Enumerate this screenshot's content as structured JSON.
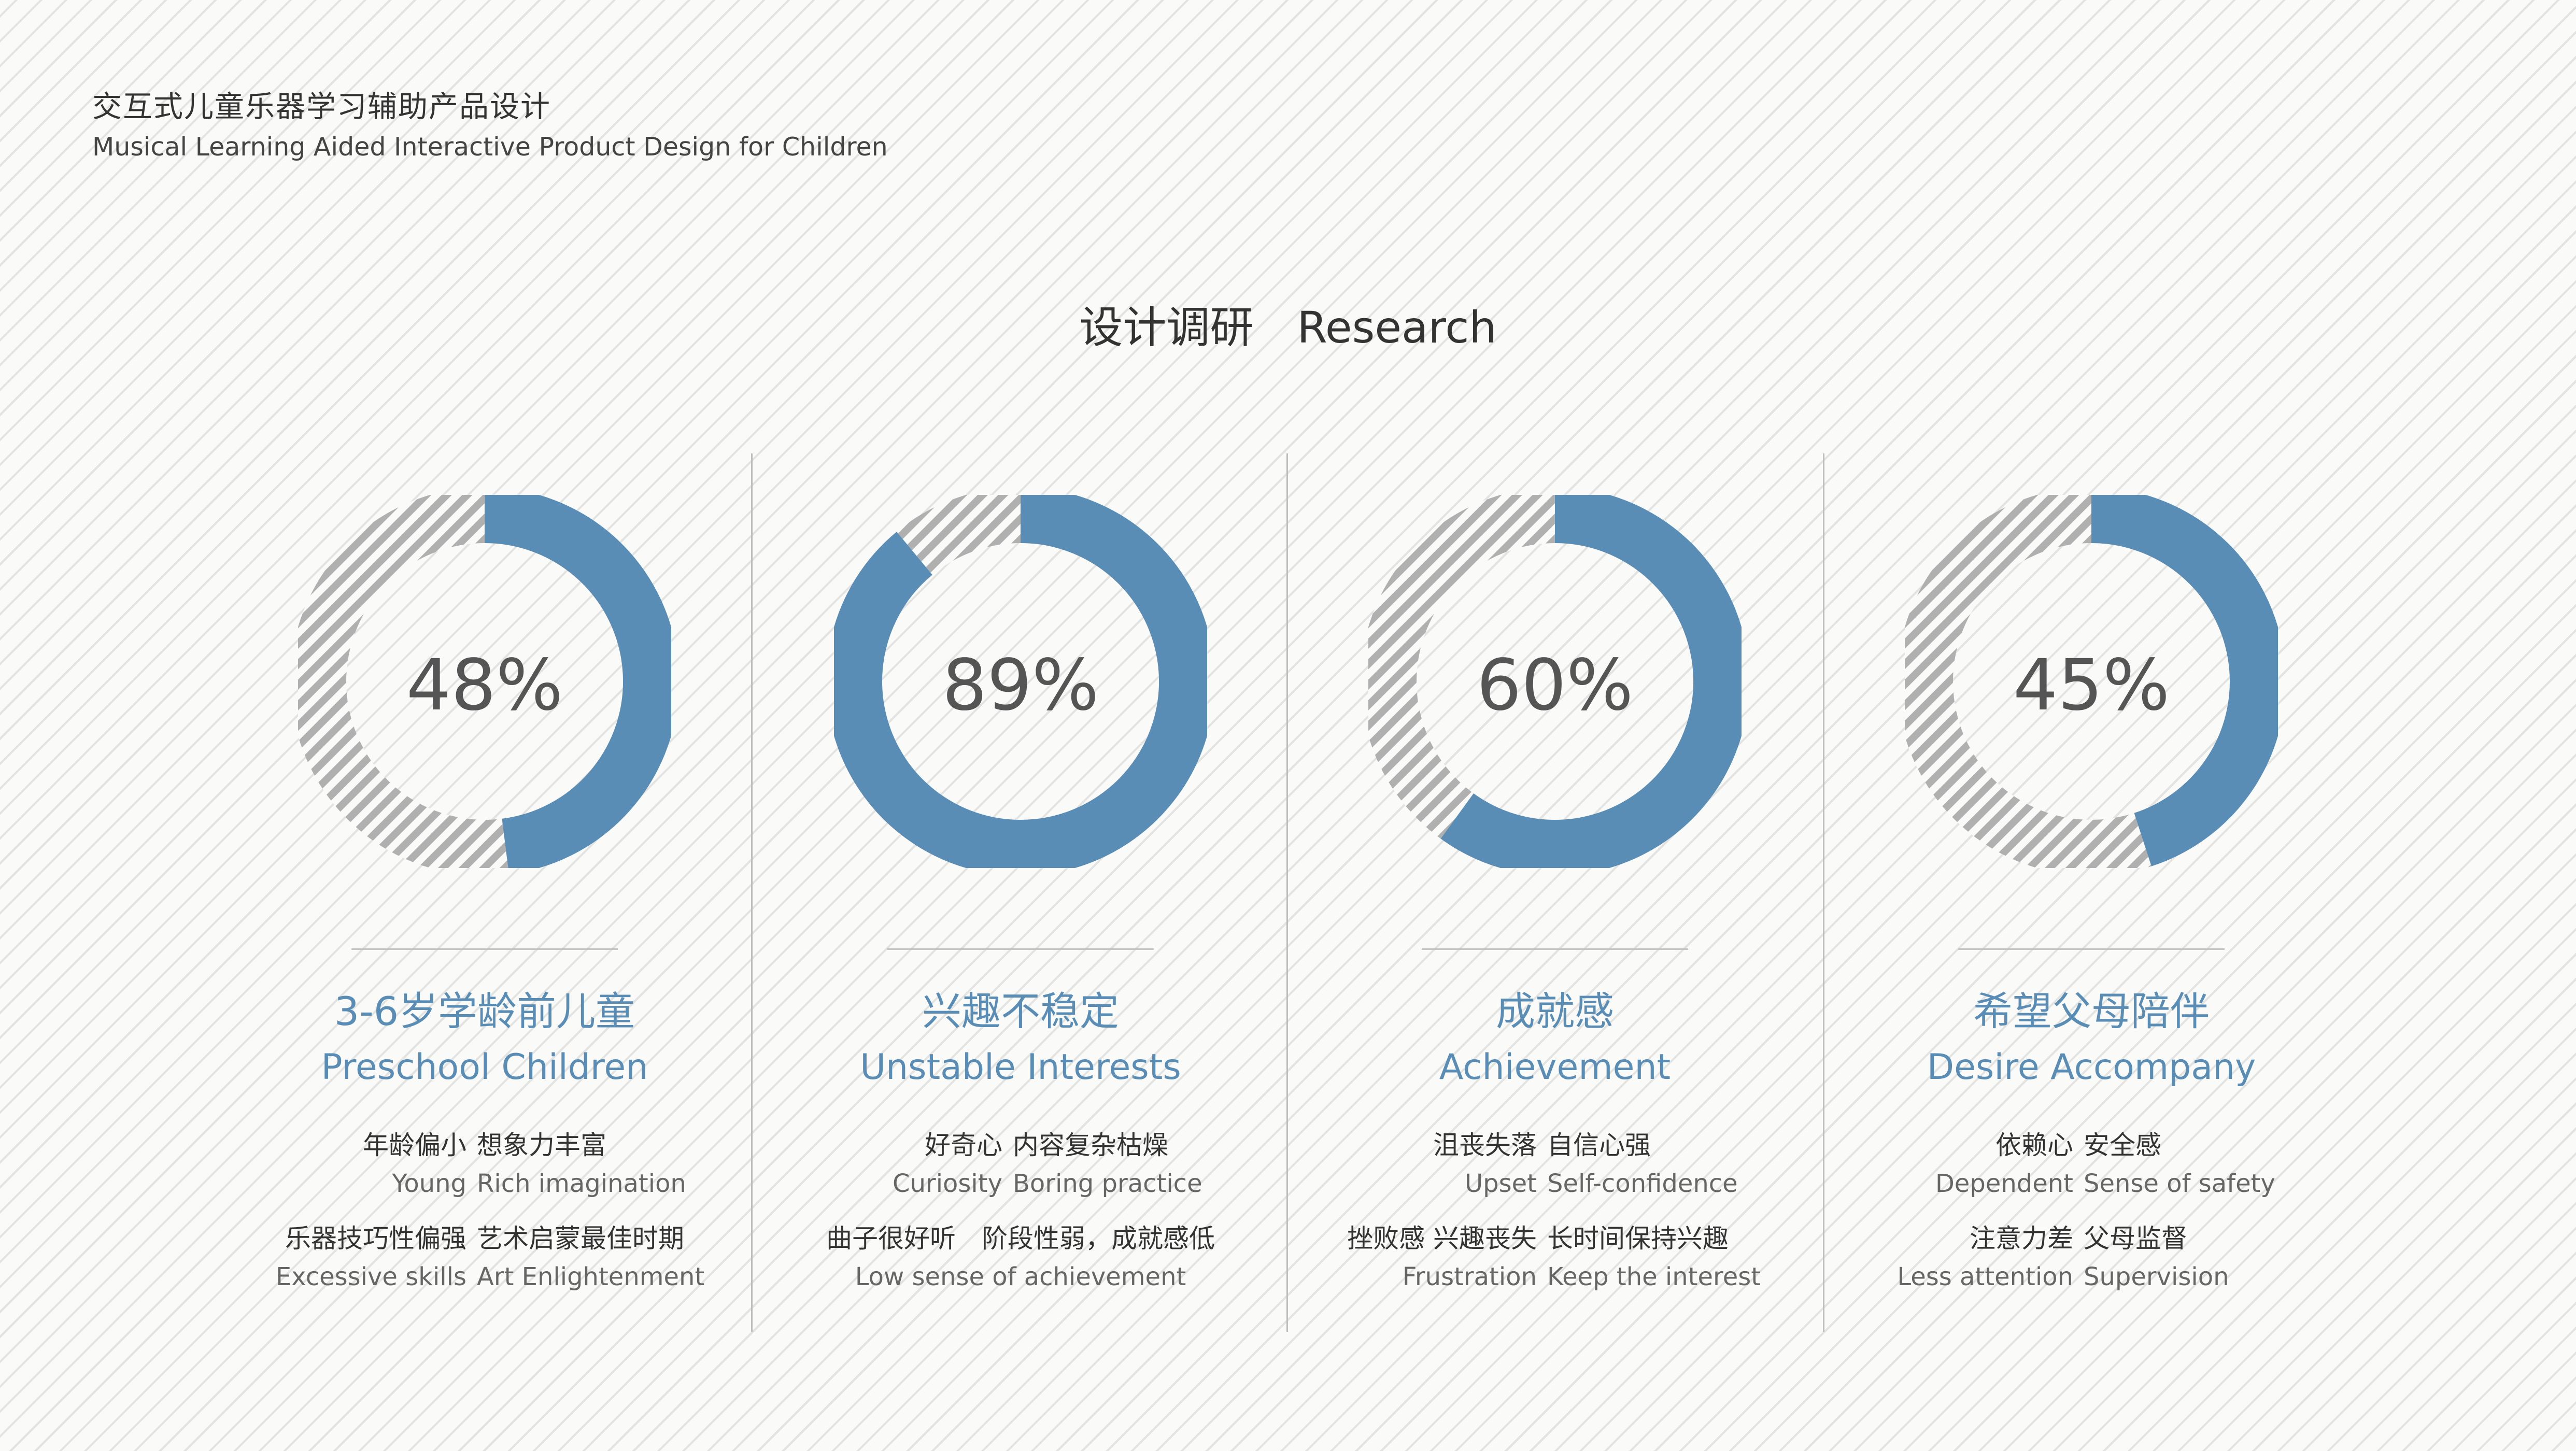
{
  "header": {
    "title_zh": "交互式儿童乐器学习辅助产品设计",
    "title_en": "Musical Learning Aided Interactive Product Design for Children"
  },
  "section_title": "设计调研　Research",
  "colors": {
    "accent": "#5a8db6",
    "remainder_stripe": "#b0b0b0",
    "text_dark": "#333333",
    "text_muted": "#666666"
  },
  "chart_data": [
    {
      "type": "pie",
      "variant": "donut",
      "values": [
        48,
        52
      ],
      "label": "48%",
      "title_zh": "3-6岁学龄前儿童",
      "title_en": "Preschool Children",
      "rows": [
        {
          "layout": "two",
          "left_zh": "年龄偏小",
          "left_en": "Young",
          "right_zh": "想象力丰富",
          "right_en": "Rich imagination"
        },
        {
          "layout": "two",
          "left_zh": "乐器技巧性偏强",
          "left_en": "Excessive skills",
          "right_zh": "艺术启蒙最佳时期",
          "right_en": "Art Enlightenment"
        }
      ]
    },
    {
      "type": "pie",
      "variant": "donut",
      "values": [
        89,
        11
      ],
      "label": "89%",
      "title_zh": "兴趣不稳定",
      "title_en": "Unstable Interests",
      "rows": [
        {
          "layout": "two",
          "left_zh": "好奇心",
          "left_en": "Curiosity",
          "right_zh": "内容复杂枯燥",
          "right_en": "Boring practice"
        },
        {
          "layout": "one",
          "zh": "曲子很好听　阶段性弱，成就感低",
          "en": "Low sense of achievement"
        }
      ]
    },
    {
      "type": "pie",
      "variant": "donut",
      "values": [
        60,
        40
      ],
      "label": "60%",
      "title_zh": "成就感",
      "title_en": "Achievement",
      "rows": [
        {
          "layout": "two",
          "left_zh": "沮丧失落",
          "left_en": "Upset",
          "right_zh": "自信心强",
          "right_en": "Self-confidence"
        },
        {
          "layout": "two",
          "left_zh": "挫败感 兴趣丧失",
          "left_en": "Frustration",
          "right_zh": "长时间保持兴趣",
          "right_en": "Keep the interest"
        }
      ]
    },
    {
      "type": "pie",
      "variant": "donut",
      "values": [
        45,
        55
      ],
      "label": "45%",
      "title_zh": "希望父母陪伴",
      "title_en": "Desire Accompany",
      "rows": [
        {
          "layout": "two",
          "left_zh": "依赖心",
          "left_en": "Dependent",
          "right_zh": "安全感",
          "right_en": "Sense of safety"
        },
        {
          "layout": "two",
          "left_zh": "注意力差",
          "left_en": "Less attention",
          "right_zh": "父母监督",
          "right_en": "Supervision"
        }
      ]
    }
  ]
}
